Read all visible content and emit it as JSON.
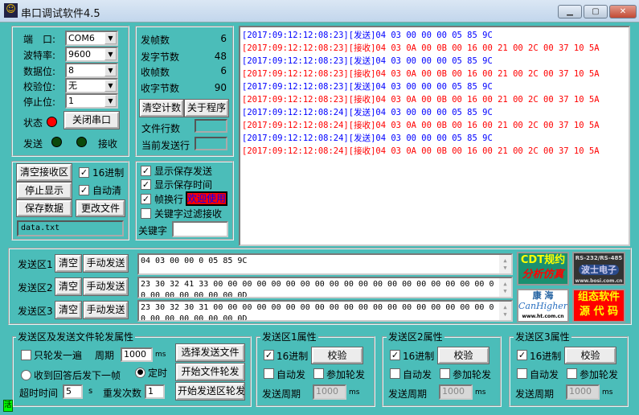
{
  "window": {
    "title": "串口调试软件4.5",
    "min": "▁",
    "max": "▢",
    "close": "✕"
  },
  "port": {
    "port_label": "端　口:",
    "port": "COM6",
    "baud_label": "波特率:",
    "baud": "9600",
    "data_label": "数据位:",
    "data": "8",
    "parity_label": "校验位:",
    "parity": "无",
    "stop_label": "停止位:",
    "stop": "1",
    "status_label": "状态",
    "status_color": "#ff0000",
    "close_port": "关闭串口",
    "send_label": "发送",
    "recv_label": "接收",
    "led_off_color": "#0b4a0b"
  },
  "counts": {
    "tx_frames_label": "发帧数",
    "tx_frames": "6",
    "tx_bytes_label": "发字节数",
    "tx_bytes": "48",
    "rx_frames_label": "收帧数",
    "rx_frames": "6",
    "rx_bytes_label": "收字节数",
    "rx_bytes": "90",
    "clear_count": "清空计数",
    "about": "关于程序",
    "file_lines_label": "文件行数",
    "current_line_label": "当前发送行"
  },
  "receive": {
    "send_color": "#0000ff",
    "recv_color": "#ff0000",
    "lines": [
      {
        "type": "send",
        "text": "[2017:09:12:12:08:23][发送]04 03 00 00 00 05 85 9C"
      },
      {
        "type": "recv",
        "text": "[2017:09:12:12:08:23][接收]04 03 0A 00 0B 00 16 00 21 00 2C 00 37 10 5A"
      },
      {
        "type": "send",
        "text": "[2017:09:12:12:08:23][发送]04 03 00 00 00 05 85 9C"
      },
      {
        "type": "recv",
        "text": "[2017:09:12:12:08:23][接收]04 03 0A 00 0B 00 16 00 21 00 2C 00 37 10 5A"
      },
      {
        "type": "send",
        "text": "[2017:09:12:12:08:23][发送]04 03 00 00 00 05 85 9C"
      },
      {
        "type": "recv",
        "text": "[2017:09:12:12:08:23][接收]04 03 0A 00 0B 00 16 00 21 00 2C 00 37 10 5A"
      },
      {
        "type": "send",
        "text": "[2017:09:12:12:08:24][发送]04 03 00 00 00 05 85 9C"
      },
      {
        "type": "recv",
        "text": "[2017:09:12:12:08:24][接收]04 03 0A 00 0B 00 16 00 21 00 2C 00 37 10 5A"
      },
      {
        "type": "send",
        "text": "[2017:09:12:12:08:24][发送]04 03 00 00 00 05 85 9C"
      },
      {
        "type": "recv",
        "text": "[2017:09:12:12:08:24][接收]04 03 0A 00 0B 00 16 00 21 00 2C 00 37 10 5A"
      }
    ]
  },
  "rxctl": {
    "clear_rx": "清空接收区",
    "hex": "16进制",
    "hex_checked": true,
    "stop_display": "停止显示",
    "auto_clear": "自动清",
    "auto_clear_checked": true,
    "save_data": "保存数据",
    "change_file": "更改文件",
    "filename": "data.txt"
  },
  "display": {
    "show_send": "显示保存发送",
    "show_time": "显示保存时间",
    "frame_newline": "帧换行",
    "welcome": "欢迎使用",
    "keyword_filter": "关键字过滤接收",
    "keyword_label": "关键字",
    "keyword": ""
  },
  "send": {
    "clear": "清空",
    "manual": "手动发送",
    "areas": [
      {
        "label": "发送区1",
        "text": "04 03 00 00 0 05   85 9C"
      },
      {
        "label": "发送区2",
        "text": "23 30 32 41 33 00 00 00 00 00 00 00 00 00 00 00 00 00 00 00 00 00 00 00 00 00 00 00 00 00 00 0D"
      },
      {
        "label": "发送区3",
        "text": "23 30 32 30 31 00 00 00 00 00 00 00 00 00 00 00 00 00 00 00 00 00 00 00 00 00 00 00 00 00 00 0D"
      }
    ]
  },
  "ads": {
    "cdt1": "CDT规约",
    "cdt2": "分析仿真",
    "bosi1": "RS-232/RS-485",
    "bosi2": "波士电子",
    "bosi3": "www.bosi.com.cn",
    "kh1": "康 海",
    "kh2": "CanHigher",
    "kh3": "www.ht.com.cn",
    "zt1": "组态软件",
    "zt2": "源 代 码"
  },
  "poll": {
    "title": "发送区及发送文件轮发属性",
    "once": "只轮发一遍",
    "period_label": "周期",
    "period": "1000",
    "ms": "ms",
    "select_file": "选择发送文件",
    "after_reply": "收到回答后发下一帧",
    "timed": "定时",
    "timed_selected": true,
    "start_file": "开始文件轮发",
    "timeout_label": "超时时间",
    "timeout": "5",
    "s": "s",
    "retry_label": "重发次数",
    "retry": "1",
    "start_area": "开始发送区轮发"
  },
  "areaprops": [
    {
      "title": "发送区1属性",
      "hex": "16进制",
      "check": "校验",
      "auto": "自动发",
      "join": "参加轮发",
      "period_label": "发送周期",
      "period": "1000",
      "ms": "ms"
    },
    {
      "title": "发送区2属性",
      "hex": "16进制",
      "check": "校验",
      "auto": "自动发",
      "join": "参加轮发",
      "period_label": "发送周期",
      "period": "1000",
      "ms": "ms"
    },
    {
      "title": "发送区3属性",
      "hex": "16进制",
      "check": "校验",
      "auto": "自动发",
      "join": "参加轮发",
      "period_label": "发送周期",
      "period": "1000",
      "ms": "ms"
    }
  ],
  "statusbar": {
    "icon": "活"
  }
}
